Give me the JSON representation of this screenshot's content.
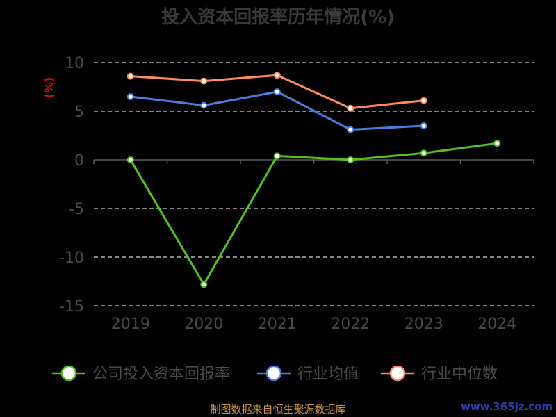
{
  "chart_data": {
    "type": "line",
    "title": "投入资本回报率历年情况(%)",
    "ylabel": "(%)",
    "xlabel": "",
    "x": [
      "2019",
      "2020",
      "2021",
      "2022",
      "2023",
      "2024"
    ],
    "ylim": [
      -15,
      10
    ],
    "yticks": [
      10,
      5,
      0,
      -5,
      -10,
      -15
    ],
    "grid": true,
    "legend_position": "bottom",
    "series": [
      {
        "name": "公司投入资本回报率",
        "color": "#52c41a",
        "values": [
          0.0,
          -12.8,
          0.4,
          0.0,
          0.7,
          1.7
        ]
      },
      {
        "name": "行业均值",
        "color": "#4a7fe0",
        "values": [
          6.5,
          5.6,
          7.0,
          3.1,
          3.5,
          null
        ]
      },
      {
        "name": "行业中位数",
        "color": "#ff8c5a",
        "values": [
          8.6,
          8.1,
          8.7,
          5.3,
          6.1,
          null
        ]
      }
    ]
  },
  "footer": {
    "source": "制图数据来自恒生聚源数据库",
    "watermark": "www.365jz.com"
  }
}
